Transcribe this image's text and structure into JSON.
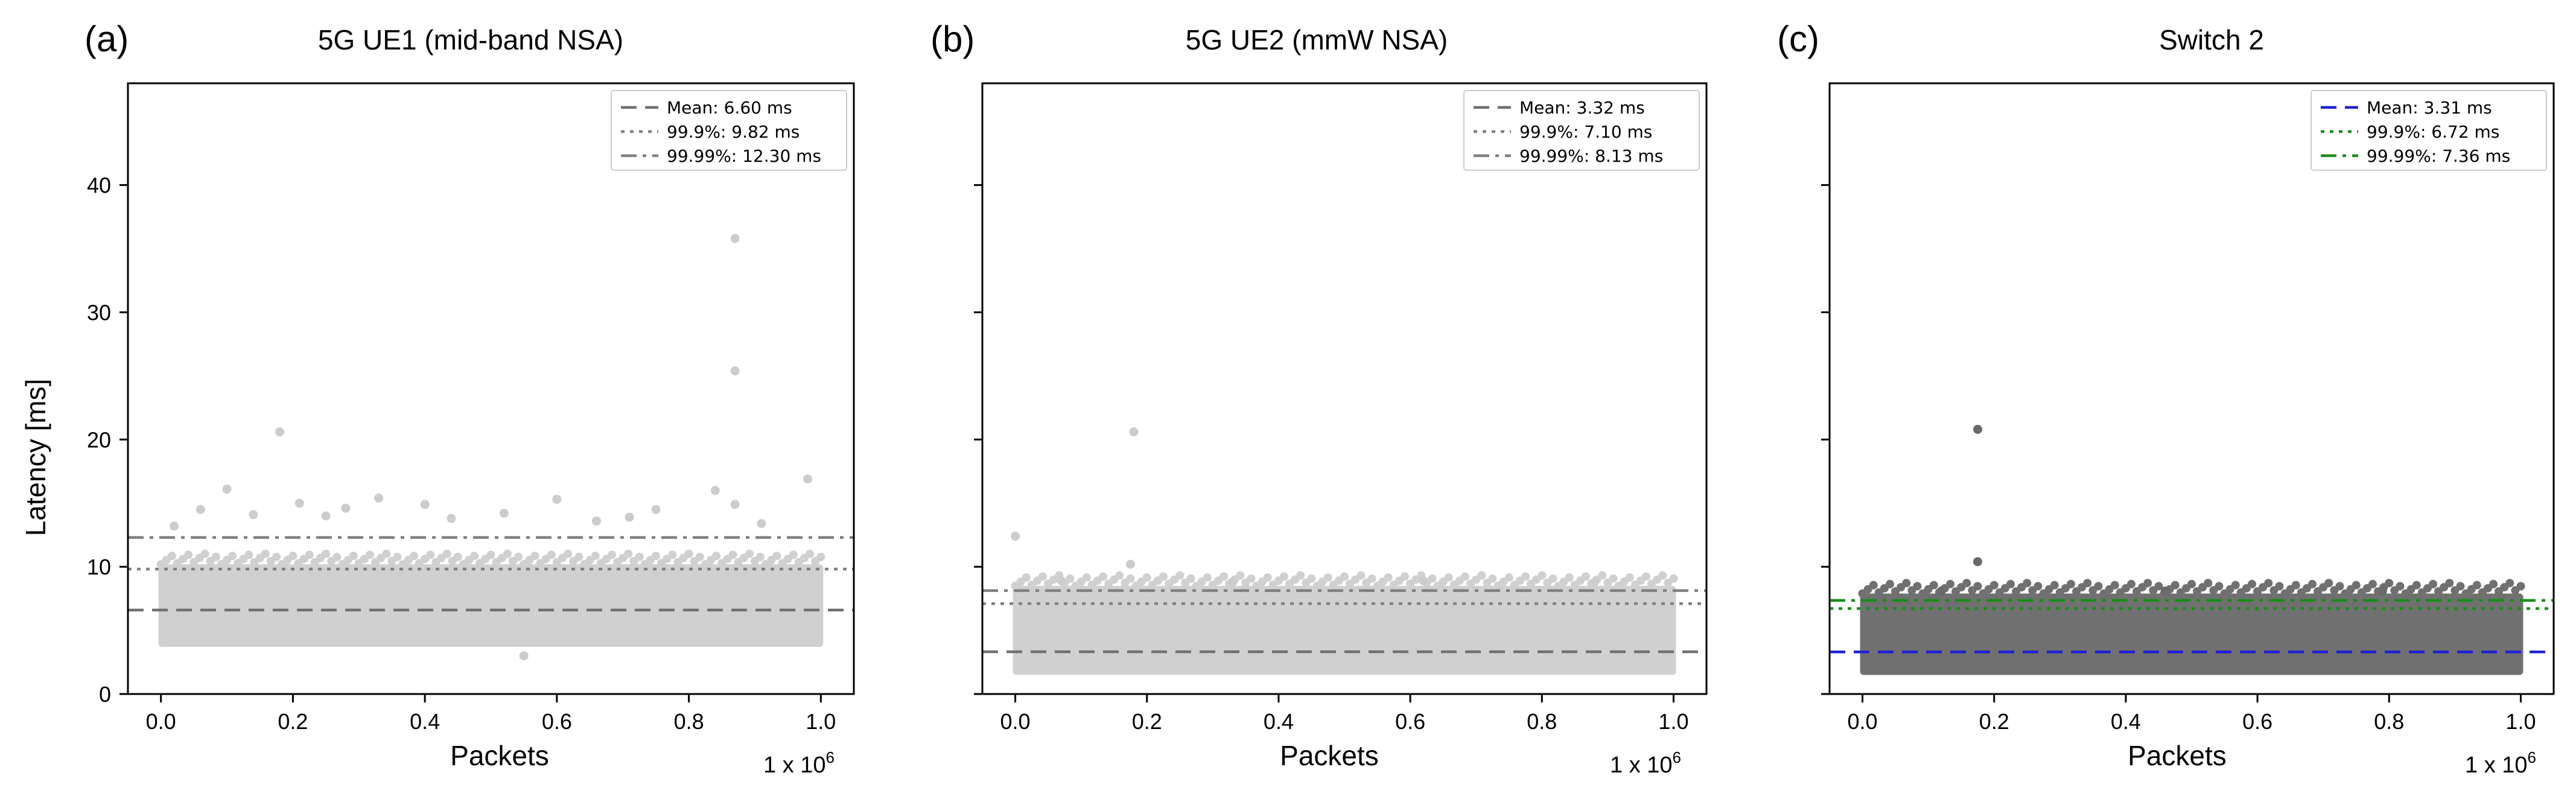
{
  "chart_data": [
    {
      "type": "scatter",
      "panel_label": "(a)",
      "title": "5G UE1 (mid-band NSA)",
      "xlabel": "Packets",
      "x_multiplier": "1 x 10",
      "x_multiplier_exp": "6",
      "ylabel": "Latency [ms]",
      "xlim": [
        -0.05,
        1.05
      ],
      "ylim": [
        0,
        48
      ],
      "xticks": [
        "0.0",
        "0.2",
        "0.4",
        "0.6",
        "0.8",
        "1.0"
      ],
      "yticks": [
        "0",
        "10",
        "20",
        "30",
        "40"
      ],
      "band": {
        "x_min": 0.0,
        "x_max": 1.0,
        "y_min": 3.7,
        "y_max": 10.2
      },
      "outliers": [
        {
          "x": 0.87,
          "y": 35.8
        },
        {
          "x": 0.87,
          "y": 25.4
        },
        {
          "x": 0.18,
          "y": 20.6
        },
        {
          "x": 0.98,
          "y": 16.9
        },
        {
          "x": 0.1,
          "y": 16.1
        },
        {
          "x": 0.84,
          "y": 16.0
        },
        {
          "x": 0.6,
          "y": 15.3
        },
        {
          "x": 0.33,
          "y": 15.4
        },
        {
          "x": 0.21,
          "y": 15.0
        },
        {
          "x": 0.87,
          "y": 14.9
        },
        {
          "x": 0.4,
          "y": 14.9
        },
        {
          "x": 0.06,
          "y": 14.5
        },
        {
          "x": 0.28,
          "y": 14.6
        },
        {
          "x": 0.75,
          "y": 14.5
        },
        {
          "x": 0.14,
          "y": 14.1
        },
        {
          "x": 0.25,
          "y": 14.0
        },
        {
          "x": 0.52,
          "y": 14.2
        },
        {
          "x": 0.44,
          "y": 13.8
        },
        {
          "x": 0.66,
          "y": 13.6
        },
        {
          "x": 0.71,
          "y": 13.9
        },
        {
          "x": 0.91,
          "y": 13.4
        },
        {
          "x": 0.02,
          "y": 13.2
        },
        {
          "x": 0.55,
          "y": 3.0
        }
      ],
      "lines": [
        {
          "label": "Mean: 6.60 ms",
          "value": 6.6,
          "style": "dashed",
          "color": "#707070"
        },
        {
          "label": "99.9%: 9.82 ms",
          "value": 9.82,
          "style": "dotted",
          "color": "#808080"
        },
        {
          "label": "99.99%: 12.30 ms",
          "value": 12.3,
          "style": "dashdot",
          "color": "#808080"
        }
      ],
      "point_color": "#d0d0d0",
      "dark_points": false
    },
    {
      "type": "scatter",
      "panel_label": "(b)",
      "title": "5G UE2 (mmW NSA)",
      "xlabel": "Packets",
      "x_multiplier": "1 x 10",
      "x_multiplier_exp": "6",
      "ylabel": "",
      "xlim": [
        -0.05,
        1.05
      ],
      "ylim": [
        0,
        48
      ],
      "xticks": [
        "0.0",
        "0.2",
        "0.4",
        "0.6",
        "0.8",
        "1.0"
      ],
      "yticks": [],
      "band": {
        "x_min": 0.0,
        "x_max": 1.0,
        "y_min": 1.5,
        "y_max": 8.5
      },
      "outliers": [
        {
          "x": 0.18,
          "y": 20.6
        },
        {
          "x": 0.0,
          "y": 12.4
        },
        {
          "x": 0.175,
          "y": 10.2
        },
        {
          "x": 0.07,
          "y": 8.9
        },
        {
          "x": 0.33,
          "y": 8.8
        },
        {
          "x": 0.62,
          "y": 8.9
        },
        {
          "x": 0.88,
          "y": 8.8
        }
      ],
      "lines": [
        {
          "label": "Mean: 3.32 ms",
          "value": 3.32,
          "style": "dashed",
          "color": "#707070"
        },
        {
          "label": "99.9%: 7.10 ms",
          "value": 7.1,
          "style": "dotted",
          "color": "#808080"
        },
        {
          "label": "99.99%: 8.13 ms",
          "value": 8.13,
          "style": "dashdot",
          "color": "#808080"
        }
      ],
      "point_color": "#d0d0d0",
      "dark_points": false
    },
    {
      "type": "scatter",
      "panel_label": "(c)",
      "title": "Switch 2",
      "xlabel": "Packets",
      "x_multiplier": "1 x 10",
      "x_multiplier_exp": "6",
      "ylabel": "",
      "xlim": [
        -0.05,
        1.05
      ],
      "ylim": [
        0,
        48
      ],
      "xticks": [
        "0.0",
        "0.2",
        "0.4",
        "0.6",
        "0.8",
        "1.0"
      ],
      "yticks": [],
      "band": {
        "x_min": 0.0,
        "x_max": 1.0,
        "y_min": 1.5,
        "y_max": 7.9
      },
      "outliers": [
        {
          "x": 0.175,
          "y": 20.8
        },
        {
          "x": 0.175,
          "y": 10.4
        },
        {
          "x": 0.12,
          "y": 8.1
        },
        {
          "x": 0.46,
          "y": 8.1
        },
        {
          "x": 0.79,
          "y": 8.1
        }
      ],
      "lines": [
        {
          "label": "Mean: 3.31 ms",
          "value": 3.31,
          "style": "dashed",
          "color": "#1f1fd6"
        },
        {
          "label": "99.9%: 6.72 ms",
          "value": 6.72,
          "style": "dotted",
          "color": "#1a8c1a"
        },
        {
          "label": "99.99%: 7.36 ms",
          "value": 7.36,
          "style": "dashdot",
          "color": "#1a8c1a"
        }
      ],
      "point_color": "#707070",
      "dark_points": true
    }
  ]
}
